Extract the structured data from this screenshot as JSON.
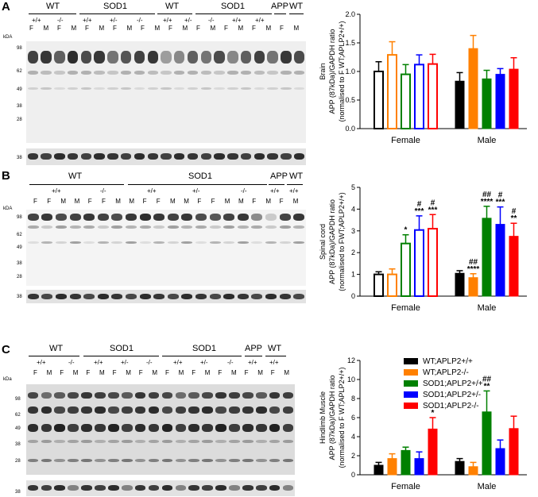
{
  "panels": {
    "A": {
      "letter": "A",
      "groups": [
        "WT",
        "SOD1",
        "WT",
        "SOD1",
        "APP",
        "WT"
      ],
      "genotypes": [
        "+/+",
        "-/-",
        "+/+",
        "+/-",
        "-/-",
        "+/+",
        "+/-",
        "-/-",
        "+/+",
        "+/+"
      ],
      "sexes": [
        "F",
        "M",
        "F",
        "M",
        "F",
        "M",
        "F",
        "M",
        "F",
        "M",
        "F",
        "M",
        "F",
        "M",
        "F",
        "M",
        "F",
        "M",
        "F",
        "M"
      ],
      "kda_label": "kDA",
      "markers": [
        "98",
        "62",
        "49",
        "38",
        "28",
        "38"
      ]
    },
    "B": {
      "letter": "B",
      "groups": [
        "WT",
        "SOD1",
        "APP",
        "WT"
      ],
      "genotypes": [
        "+/+",
        "-/-",
        "+/+",
        "+/-",
        "-/-",
        "+/+",
        "+/+"
      ],
      "sexes": [
        "F",
        "F",
        "M",
        "M",
        "F",
        "F",
        "M",
        "M",
        "F",
        "F",
        "M",
        "M",
        "F",
        "F",
        "M",
        "M",
        "F",
        "M",
        "F",
        "M"
      ],
      "kda_label": "kDA",
      "markers": [
        "98",
        "62",
        "49",
        "38",
        "28",
        "38"
      ]
    },
    "C": {
      "letter": "C",
      "groups": [
        "WT",
        "SOD1",
        "SOD1",
        "APP",
        "WT"
      ],
      "genotypes": [
        "+/+",
        "-/-",
        "+/+",
        "+/-",
        "-/-",
        "+/+",
        "+/-",
        "-/-",
        "+/+",
        "+/+"
      ],
      "sexes": [
        "F",
        "M",
        "F",
        "M",
        "F",
        "M",
        "F",
        "M",
        "F",
        "M",
        "F",
        "M",
        "F",
        "M",
        "F",
        "M",
        "F",
        "M",
        "F",
        "M"
      ],
      "kda_label": "kDa",
      "markers": [
        "98",
        "62",
        "49",
        "38",
        "28",
        "38"
      ]
    }
  },
  "legend": [
    {
      "label": "WT;APLP2+/+",
      "color": "#000000"
    },
    {
      "label": "WT;APLP2-/-",
      "color": "#ff8000"
    },
    {
      "label": "SOD1;APLP2+/+",
      "color": "#008000"
    },
    {
      "label": "SOD1;APLP2+/-",
      "color": "#0000ff"
    },
    {
      "label": "SOD1;APLP2-/-",
      "color": "#ff0000"
    }
  ],
  "chart_data": [
    {
      "type": "bar",
      "tissue": "Brain",
      "ylabel": "APP (87kDa)/GAPDH ratio",
      "ylabel2": "(normalised to F WT;APLP2+/+)",
      "categories": [
        "Female",
        "Male"
      ],
      "ylim": [
        0,
        2.0
      ],
      "yticks": [
        "0.0",
        "0.5",
        "1.0",
        "1.5",
        "2.0"
      ],
      "tick_values": [
        0,
        0.5,
        1.0,
        1.5,
        2.0
      ],
      "filled_groups": [
        false,
        true
      ],
      "series": [
        {
          "color": "#000000",
          "values": [
            1.0,
            0.83
          ],
          "errors": [
            0.17,
            0.15
          ],
          "labels": [
            "",
            ""
          ]
        },
        {
          "color": "#ff8000",
          "values": [
            1.29,
            1.4
          ],
          "errors": [
            0.23,
            0.23
          ],
          "labels": [
            "",
            ""
          ]
        },
        {
          "color": "#008000",
          "values": [
            0.95,
            0.87
          ],
          "errors": [
            0.17,
            0.15
          ],
          "labels": [
            "",
            ""
          ]
        },
        {
          "color": "#0000ff",
          "values": [
            1.12,
            0.95
          ],
          "errors": [
            0.17,
            0.1
          ],
          "labels": [
            "",
            ""
          ]
        },
        {
          "color": "#ff0000",
          "values": [
            1.13,
            1.04
          ],
          "errors": [
            0.17,
            0.2
          ],
          "labels": [
            "",
            ""
          ]
        }
      ]
    },
    {
      "type": "bar",
      "tissue": "Spinal cord",
      "ylabel": "APP (87kDa)/GAPDH ratio",
      "ylabel2": "(normalised to FWT;APLP2+/+)",
      "categories": [
        "Female",
        "Male"
      ],
      "ylim": [
        0,
        5
      ],
      "yticks": [
        "0",
        "1",
        "2",
        "3",
        "4",
        "5"
      ],
      "tick_values": [
        0,
        1,
        2,
        3,
        4,
        5
      ],
      "filled_groups": [
        false,
        true
      ],
      "series": [
        {
          "color": "#000000",
          "values": [
            1.0,
            1.05
          ],
          "errors": [
            0.12,
            0.12
          ],
          "labels": [
            "",
            ""
          ]
        },
        {
          "color": "#ff8000",
          "values": [
            1.0,
            0.85
          ],
          "errors": [
            0.25,
            0.18
          ],
          "labels": [
            "",
            "##\n****"
          ]
        },
        {
          "color": "#008000",
          "values": [
            2.42,
            3.58
          ],
          "errors": [
            0.4,
            0.55
          ],
          "labels": [
            "*",
            "##\n****"
          ]
        },
        {
          "color": "#0000ff",
          "values": [
            3.04,
            3.3
          ],
          "errors": [
            0.65,
            0.8
          ],
          "labels": [
            "#\n***",
            "#\n***"
          ]
        },
        {
          "color": "#ff0000",
          "values": [
            3.1,
            2.75
          ],
          "errors": [
            0.65,
            0.6
          ],
          "labels": [
            "#\n***",
            "#\n**"
          ]
        }
      ]
    },
    {
      "type": "bar",
      "tissue": "Hindlimb Muscle",
      "ylabel": "APP (87kDa)/GAPDH ratio",
      "ylabel2": "(normalised to F WT;APLP2+/+)",
      "categories": [
        "Female",
        "Male"
      ],
      "ylim": [
        0,
        12
      ],
      "yticks": [
        "0",
        "2",
        "4",
        "6",
        "8",
        "10",
        "12"
      ],
      "tick_values": [
        0,
        2,
        4,
        6,
        8,
        10,
        12
      ],
      "filled_groups": [
        true,
        true
      ],
      "series": [
        {
          "color": "#000000",
          "values": [
            1.0,
            1.4
          ],
          "errors": [
            0.3,
            0.3
          ],
          "labels": [
            "",
            ""
          ]
        },
        {
          "color": "#ff8000",
          "values": [
            1.7,
            0.85
          ],
          "errors": [
            0.5,
            0.45
          ],
          "labels": [
            "",
            ""
          ]
        },
        {
          "color": "#008000",
          "values": [
            2.55,
            6.6
          ],
          "errors": [
            0.35,
            2.2
          ],
          "labels": [
            "",
            "##\n**"
          ]
        },
        {
          "color": "#0000ff",
          "values": [
            1.7,
            2.75
          ],
          "errors": [
            0.7,
            0.9
          ],
          "labels": [
            "",
            ""
          ]
        },
        {
          "color": "#ff0000",
          "values": [
            4.8,
            4.85
          ],
          "errors": [
            1.2,
            1.3
          ],
          "labels": [
            "*",
            ""
          ]
        }
      ]
    }
  ]
}
